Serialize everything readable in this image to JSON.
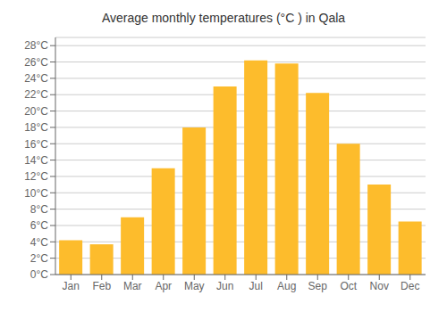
{
  "chart_data": {
    "type": "bar",
    "title": "Average monthly temperatures (°C ) in Qala",
    "categories": [
      "Jan",
      "Feb",
      "Mar",
      "Apr",
      "May",
      "Jun",
      "Jul",
      "Aug",
      "Sep",
      "Oct",
      "Nov",
      "Dec"
    ],
    "values": [
      4.2,
      3.7,
      7.0,
      13.0,
      18.0,
      23.0,
      26.2,
      25.8,
      22.2,
      16.0,
      11.0,
      6.5
    ],
    "color": "#FDBC2C",
    "ylim": [
      0,
      29
    ],
    "yticks": [
      {
        "value": 0,
        "label": "0°C"
      },
      {
        "value": 2,
        "label": "2°C"
      },
      {
        "value": 4,
        "label": "4°C"
      },
      {
        "value": 6,
        "label": "6°C"
      },
      {
        "value": 8,
        "label": "8°C"
      },
      {
        "value": 10,
        "label": "10°C"
      },
      {
        "value": 12,
        "label": "12°C"
      },
      {
        "value": 14,
        "label": "14°C"
      },
      {
        "value": 16,
        "label": "16°C"
      },
      {
        "value": 18,
        "label": "18°C"
      },
      {
        "value": 20,
        "label": "20°C"
      },
      {
        "value": 22,
        "label": "22°C"
      },
      {
        "value": 24,
        "label": "24°C"
      },
      {
        "value": 26,
        "label": "26°C"
      },
      {
        "value": 28,
        "label": "28°C"
      }
    ],
    "grid": true
  }
}
